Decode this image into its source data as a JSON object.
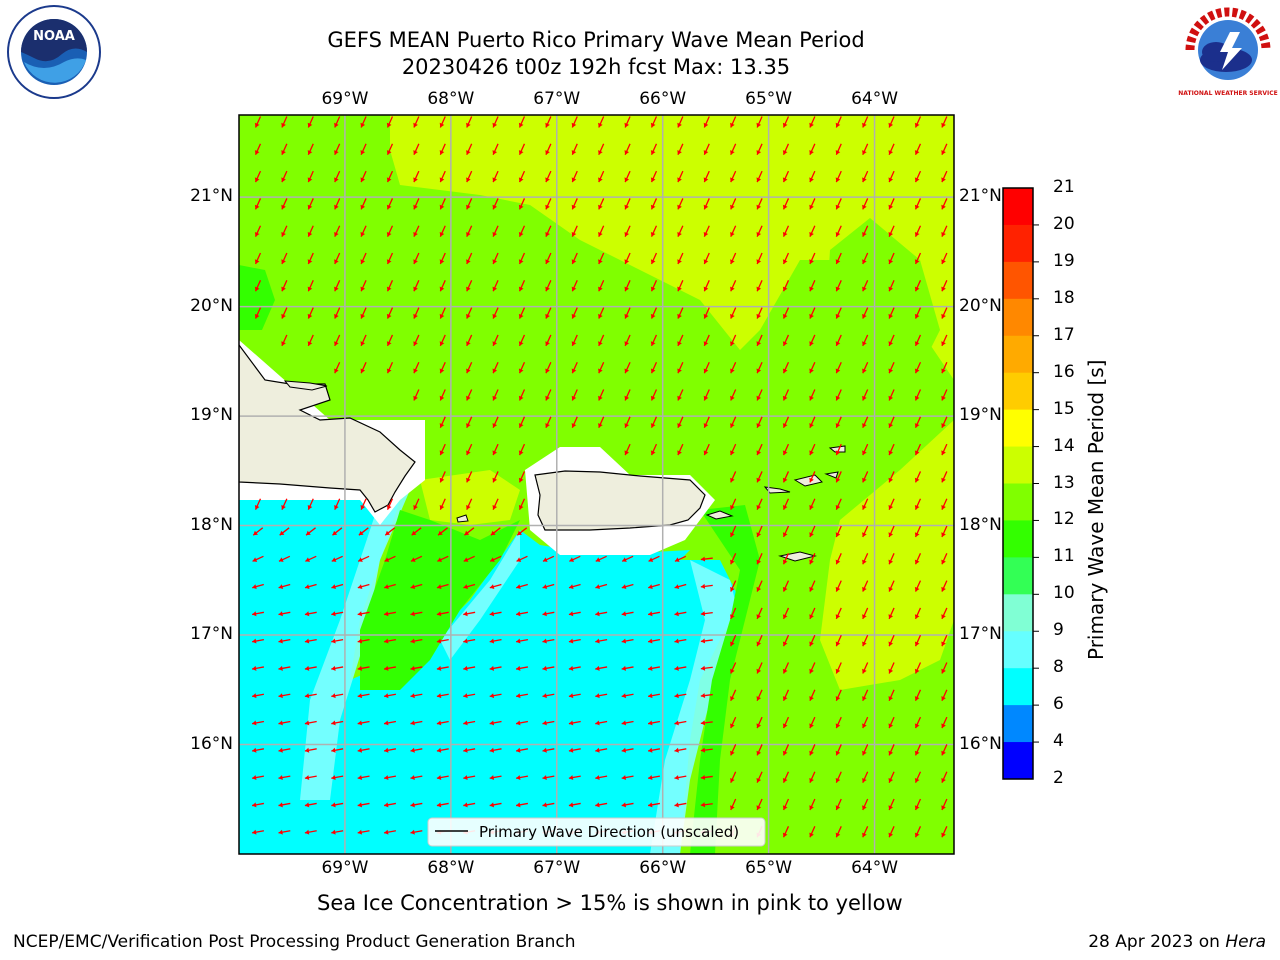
{
  "header": {
    "title_line1": "GEFS MEAN Puerto Rico Primary Wave Mean Period",
    "title_line2": "20230426 t00z 192h fcst   Max: 13.35"
  },
  "logos": {
    "left": "NOAA",
    "right": "NATIONAL WEATHER SERVICE"
  },
  "map": {
    "lon_labels": [
      "69°W",
      "68°W",
      "67°W",
      "66°W",
      "65°W",
      "64°W"
    ],
    "lat_labels": [
      "21°N",
      "20°N",
      "19°N",
      "18°N",
      "17°N",
      "16°N"
    ],
    "lon_range": [
      -70.0,
      -63.25
    ],
    "lat_range": [
      15.0,
      21.75
    ],
    "legend_label": "Primary Wave Direction (unscaled)",
    "colors": {
      "ocean_low": "#00ffff",
      "ocean_mid": "#80ffff",
      "ocean_high": "#80ff00",
      "ocean_higher": "#ccff00",
      "land": "#eeeedd",
      "arrows": "#ff0000",
      "grid": "#b0b0b0"
    }
  },
  "colorbar": {
    "title": "Primary Wave Mean Period [s]",
    "ticks": [
      "21",
      "20",
      "19",
      "18",
      "17",
      "16",
      "15",
      "14",
      "13",
      "12",
      "11",
      "10",
      "9",
      "8",
      "6",
      "4",
      "2"
    ],
    "colors": [
      "#ff0000",
      "#ff2200",
      "#ff5500",
      "#ff8800",
      "#ffaa00",
      "#ffcc00",
      "#ffff00",
      "#ccff00",
      "#80ff00",
      "#33ff00",
      "#33ff55",
      "#80ffd4",
      "#66ffff",
      "#00ffff",
      "#0088ff",
      "#0000ff"
    ]
  },
  "notes": {
    "sea_ice": "Sea Ice Concentration > 15% is shown in pink to yellow"
  },
  "footer": {
    "left": "NCEP/EMC/Verification Post Processing Product Generation Branch",
    "date": "28 Apr 2023 on ",
    "machine": "Hera"
  }
}
